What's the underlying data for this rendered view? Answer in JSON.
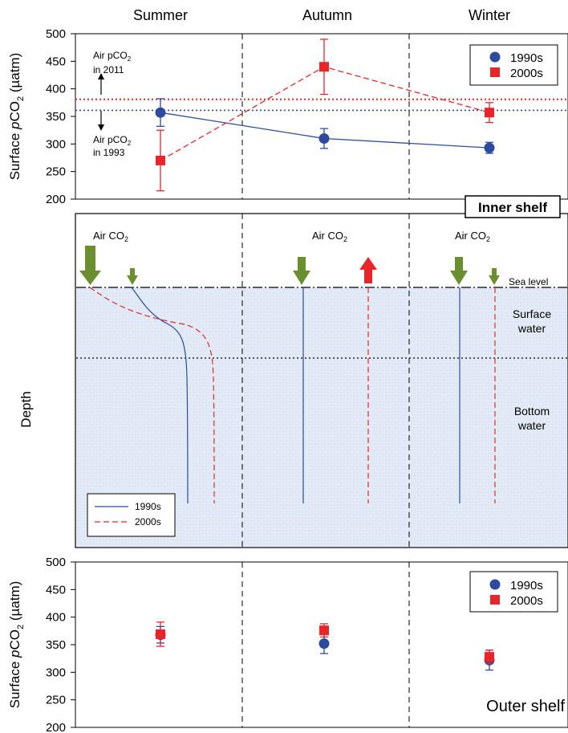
{
  "seasons": [
    "Summer",
    "Autumn",
    "Winter"
  ],
  "colors": {
    "s1990": "#2e4a9e",
    "s2000": "#e8262a",
    "arrow_green": "#6b8e2e",
    "water": "#dde7f3"
  },
  "chart_data": [
    {
      "type": "scatter",
      "label": "Inner shelf",
      "ylabel_parts": {
        "pre": "Surface ",
        "italic": "p",
        "mid": "CO",
        "sub": "2",
        "post": " (µatm)"
      },
      "ylim": [
        200,
        500
      ],
      "yticks": [
        200,
        250,
        300,
        350,
        400,
        450,
        500
      ],
      "categories": [
        "Summer",
        "Autumn",
        "Winter"
      ],
      "series": [
        {
          "name": "1990s",
          "marker": "circle",
          "connected": true,
          "values": [
            357,
            310,
            293
          ],
          "err": [
            25,
            18,
            10
          ]
        },
        {
          "name": "2000s",
          "marker": "square",
          "connected": true,
          "values": [
            270,
            440,
            357
          ],
          "err": [
            55,
            50,
            18
          ]
        }
      ],
      "reference_lines": [
        {
          "value": 381,
          "label": "Air pCO₂ in 2011",
          "color": "#e8262a"
        },
        {
          "value": 361,
          "label": "Air pCO₂ in 1993",
          "color": "#2e4a9e"
        }
      ],
      "annotations": {
        "air2011": {
          "line1": "Air pCO",
          "sub": "2",
          "line2": "in 2011"
        },
        "air1993": {
          "line1": "Air pCO",
          "sub": "2",
          "line2": "in 1993"
        }
      },
      "legend": "top-right"
    },
    {
      "type": "scatter",
      "label": "Outer shelf",
      "ylabel_parts": {
        "pre": "Surface ",
        "italic": "p",
        "mid": "CO",
        "sub": "2",
        "post": " (µatm)"
      },
      "ylim": [
        200,
        500
      ],
      "yticks": [
        200,
        250,
        300,
        350,
        400,
        450,
        500
      ],
      "categories": [
        "Summer",
        "Autumn",
        "Winter"
      ],
      "series": [
        {
          "name": "1990s",
          "marker": "circle",
          "connected": false,
          "values": [
            368,
            352,
            322
          ],
          "err": [
            15,
            18,
            18
          ]
        },
        {
          "name": "2000s",
          "marker": "square",
          "connected": false,
          "values": [
            369,
            376,
            328
          ],
          "err": [
            22,
            12,
            12
          ]
        }
      ],
      "legend": "top-right"
    }
  ],
  "schematic": {
    "title": "Inner shelf",
    "ylabel": "Depth",
    "air_label": {
      "main": "Air CO",
      "sub": "2"
    },
    "sea_level": "Sea level",
    "surface_water": [
      "Surface",
      "water"
    ],
    "bottom_water": [
      "Bottom",
      "water"
    ],
    "legend": {
      "s1990": "1990s",
      "s2000": "2000s"
    },
    "fluxes": [
      {
        "season": "Summer",
        "arrows": [
          {
            "direction": "down",
            "size": "large",
            "color": "green"
          },
          {
            "direction": "down",
            "size": "small",
            "color": "green"
          }
        ]
      },
      {
        "season": "Autumn",
        "arrows": [
          {
            "direction": "down",
            "size": "medium",
            "color": "green"
          },
          {
            "direction": "up",
            "size": "medium",
            "color": "red"
          }
        ]
      },
      {
        "season": "Winter",
        "arrows": [
          {
            "direction": "down",
            "size": "medium",
            "color": "green"
          },
          {
            "direction": "down",
            "size": "small",
            "color": "green"
          }
        ]
      }
    ]
  }
}
